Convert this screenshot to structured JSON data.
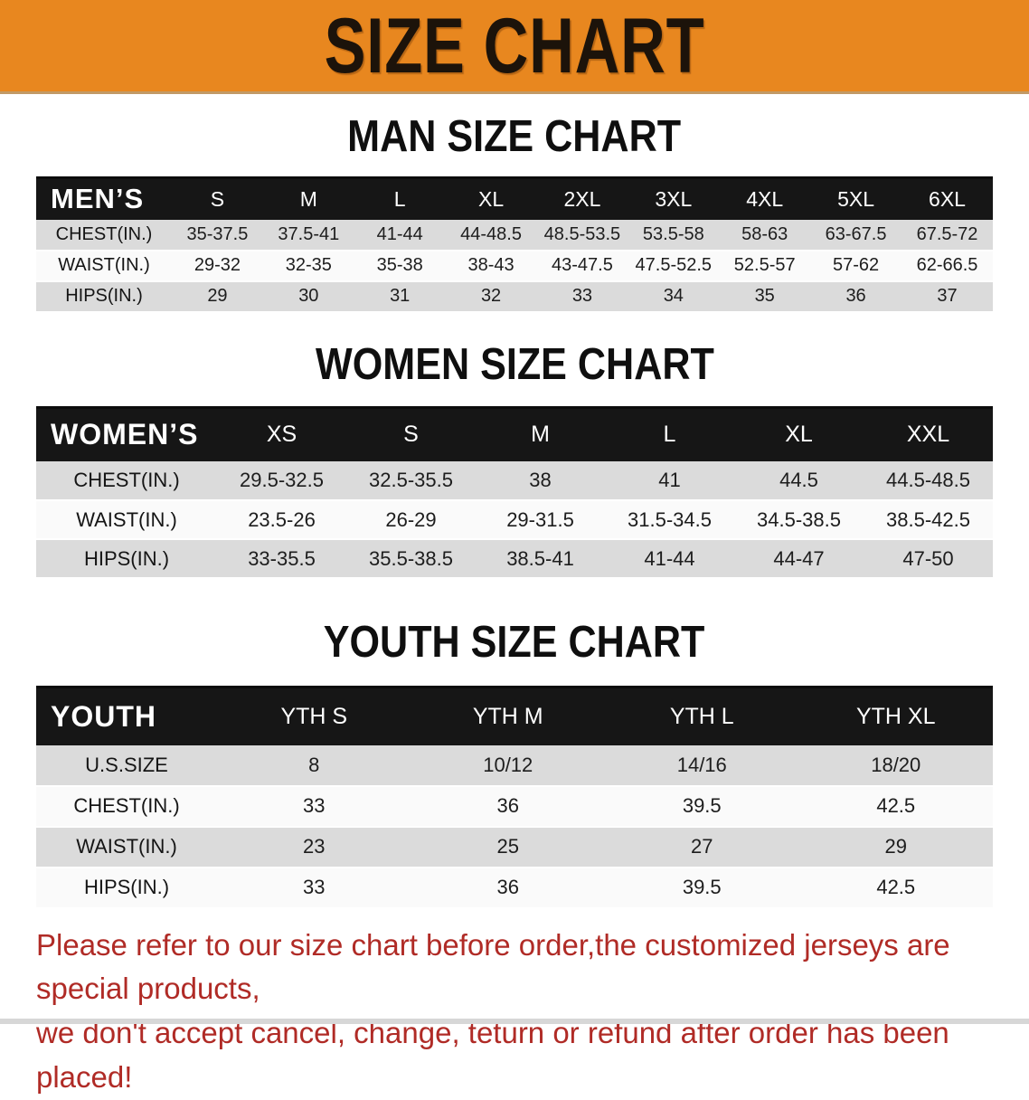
{
  "banner": {
    "title": "SIZE CHART"
  },
  "sections": [
    {
      "heading": "MAN SIZE CHART",
      "corner_label": "MEN’S",
      "columns": [
        "S",
        "M",
        "L",
        "XL",
        "2XL",
        "3XL",
        "4XL",
        "5XL",
        "6XL"
      ],
      "rows": [
        {
          "label": "CHEST(IN.)",
          "values": [
            "35-37.5",
            "37.5-41",
            "41-44",
            "44-48.5",
            "48.5-53.5",
            "53.5-58",
            "58-63",
            "63-67.5",
            "67.5-72"
          ]
        },
        {
          "label": "WAIST(IN.)",
          "values": [
            "29-32",
            "32-35",
            "35-38",
            "38-43",
            "43-47.5",
            "47.5-52.5",
            "52.5-57",
            "57-62",
            "62-66.5"
          ]
        },
        {
          "label": "HIPS(IN.)",
          "values": [
            "29",
            "30",
            "31",
            "32",
            "33",
            "34",
            "35",
            "36",
            "37"
          ]
        }
      ]
    },
    {
      "heading": "WOMEN SIZE CHART",
      "corner_label": "WOMEN’S",
      "columns": [
        "XS",
        "S",
        "M",
        "L",
        "XL",
        "XXL"
      ],
      "rows": [
        {
          "label": "CHEST(IN.)",
          "values": [
            "29.5-32.5",
            "32.5-35.5",
            "38",
            "41",
            "44.5",
            "44.5-48.5"
          ]
        },
        {
          "label": "WAIST(IN.)",
          "values": [
            "23.5-26",
            "26-29",
            "29-31.5",
            "31.5-34.5",
            "34.5-38.5",
            "38.5-42.5"
          ]
        },
        {
          "label": "HIPS(IN.)",
          "values": [
            "33-35.5",
            "35.5-38.5",
            "38.5-41",
            "41-44",
            "44-47",
            "47-50"
          ]
        }
      ]
    },
    {
      "heading": "YOUTH SIZE CHART",
      "corner_label": "YOUTH",
      "columns": [
        "YTH S",
        "YTH M",
        "YTH L",
        "YTH XL"
      ],
      "rows": [
        {
          "label": "U.S.SIZE",
          "values": [
            "8",
            "10/12",
            "14/16",
            "18/20"
          ]
        },
        {
          "label": "CHEST(IN.)",
          "values": [
            "33",
            "36",
            "39.5",
            "42.5"
          ]
        },
        {
          "label": "WAIST(IN.)",
          "values": [
            "23",
            "25",
            "27",
            "29"
          ]
        },
        {
          "label": "HIPS(IN.)",
          "values": [
            "33",
            "36",
            "39.5",
            "42.5"
          ]
        }
      ]
    }
  ],
  "disclaimer": {
    "line1": "Please refer to our size chart before order,the customized jerseys are special products,",
    "line2": "we don't accept cancel, change, teturn or refund after order has been placed!"
  },
  "colors": {
    "banner_bg": "#E8871F",
    "table_header_bg": "#161616",
    "stripe_gray": "#DBDBDB",
    "disclaimer_red": "#B02B26"
  }
}
